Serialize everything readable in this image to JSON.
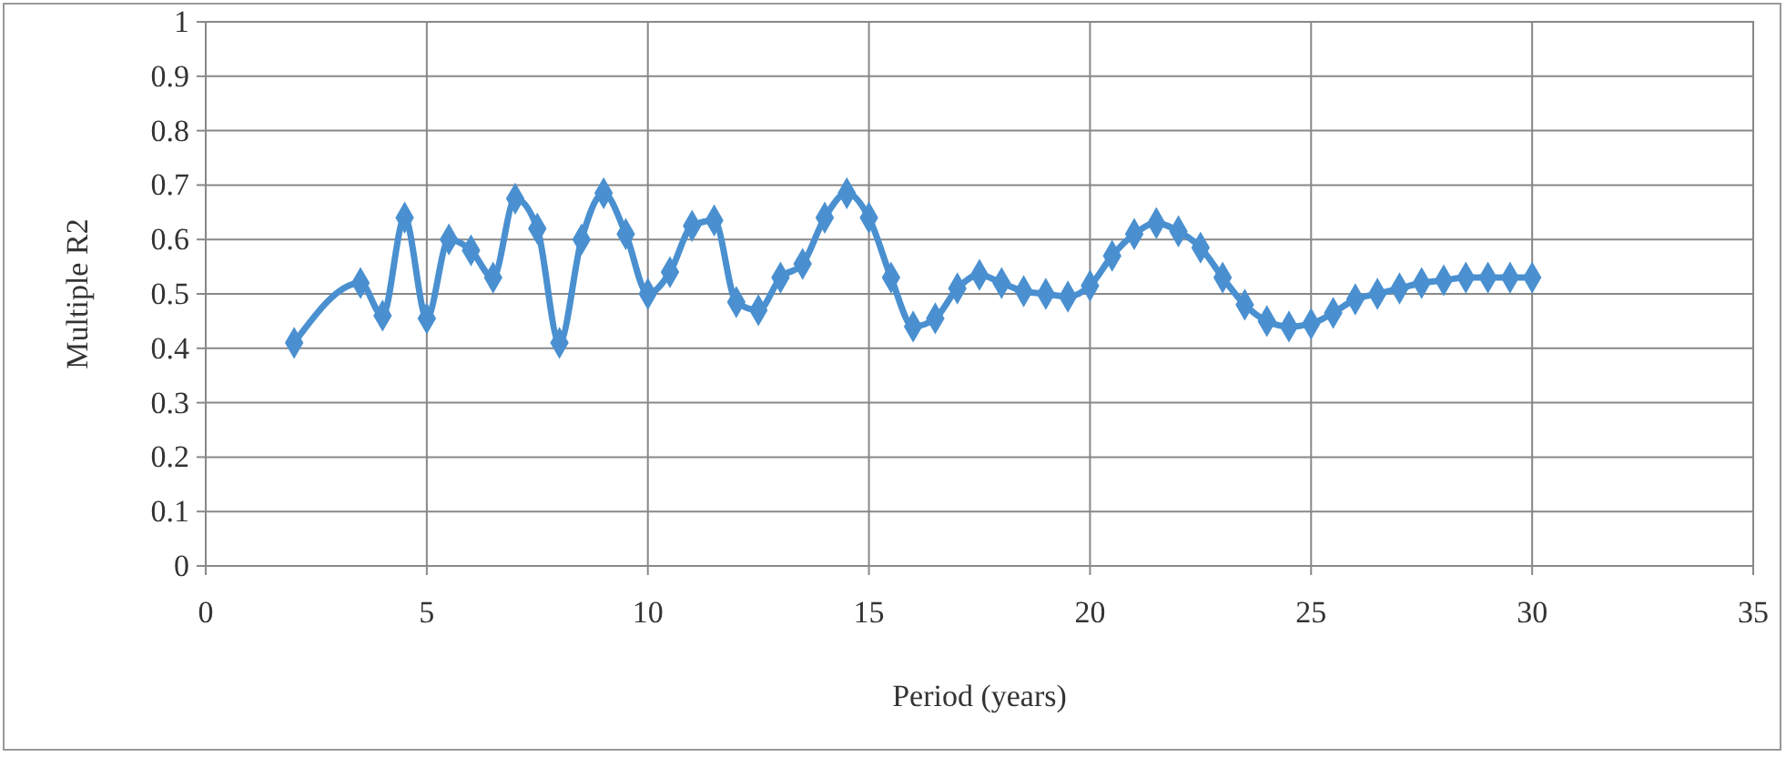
{
  "chart_data": {
    "type": "line",
    "xlabel": "Period (years)",
    "ylabel": "Multiple R2",
    "xlim": [
      0,
      35
    ],
    "xticks": [
      0,
      5,
      10,
      15,
      20,
      25,
      30,
      35
    ],
    "ylim": [
      0,
      1
    ],
    "yticks": [
      0,
      0.1,
      0.2,
      0.3,
      0.4,
      0.5,
      0.6,
      0.7,
      0.8,
      0.9,
      1
    ],
    "grid": true,
    "marker": "diamond",
    "line_style": "solid",
    "series": [
      {
        "color": "#4a90d0",
        "x": [
          2,
          3.5,
          4,
          4.5,
          5,
          5.5,
          6,
          6.5,
          7,
          7.5,
          8,
          8.5,
          9,
          9.5,
          10,
          10.5,
          11,
          11.5,
          12,
          12.5,
          13,
          13.5,
          14,
          14.5,
          15,
          15.5,
          16,
          16.5,
          17,
          17.5,
          18,
          18.5,
          19,
          19.5,
          20,
          20.5,
          21,
          21.5,
          22,
          22.5,
          23,
          23.5,
          24,
          24.5,
          25,
          25.5,
          26,
          26.5,
          27,
          27.5,
          28,
          28.5,
          29,
          29.5,
          30
        ],
        "values": [
          0.41,
          0.52,
          0.46,
          0.64,
          0.455,
          0.6,
          0.58,
          0.53,
          0.675,
          0.62,
          0.41,
          0.6,
          0.685,
          0.61,
          0.5,
          0.54,
          0.625,
          0.635,
          0.485,
          0.47,
          0.53,
          0.555,
          0.64,
          0.685,
          0.64,
          0.53,
          0.44,
          0.455,
          0.51,
          0.535,
          0.52,
          0.505,
          0.5,
          0.495,
          0.515,
          0.57,
          0.61,
          0.63,
          0.615,
          0.585,
          0.53,
          0.48,
          0.45,
          0.44,
          0.445,
          0.465,
          0.49,
          0.5,
          0.51,
          0.52,
          0.525,
          0.53,
          0.53,
          0.53,
          0.53
        ]
      }
    ]
  }
}
